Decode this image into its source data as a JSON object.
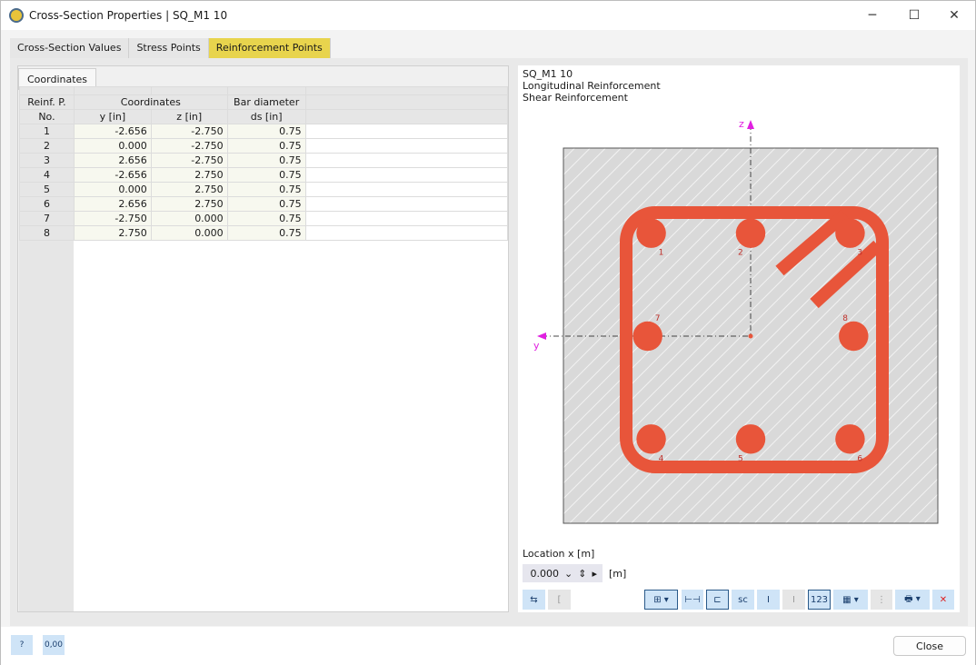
{
  "window": {
    "title": "Cross-Section Properties | SQ_M1 10"
  },
  "tabs": [
    {
      "label": "Cross-Section Values"
    },
    {
      "label": "Stress Points"
    },
    {
      "label": "Reinforcement Points",
      "active": true
    }
  ],
  "subtab": "Coordinates",
  "table": {
    "headers": {
      "no": "Reinf. P.",
      "no2": "No.",
      "coords": "Coordinates",
      "y": "y [in]",
      "z": "z [in]",
      "bar": "Bar diameter",
      "ds": "ds [in]"
    },
    "rows": [
      {
        "no": "1",
        "y": "-2.656",
        "z": "-2.750",
        "d": "0.75"
      },
      {
        "no": "2",
        "y": "0.000",
        "z": "-2.750",
        "d": "0.75"
      },
      {
        "no": "3",
        "y": "2.656",
        "z": "-2.750",
        "d": "0.75"
      },
      {
        "no": "4",
        "y": "-2.656",
        "z": "2.750",
        "d": "0.75"
      },
      {
        "no": "5",
        "y": "0.000",
        "z": "2.750",
        "d": "0.75"
      },
      {
        "no": "6",
        "y": "2.656",
        "z": "2.750",
        "d": "0.75"
      },
      {
        "no": "7",
        "y": "-2.750",
        "z": "0.000",
        "d": "0.75"
      },
      {
        "no": "8",
        "y": "2.750",
        "z": "0.000",
        "d": "0.75"
      }
    ]
  },
  "preview": {
    "name": "SQ_M1 10",
    "line2": "Longitudinal Reinforcement",
    "line3": "Shear Reinforcement",
    "axis_y": "y",
    "axis_z": "z",
    "rebar_color": "#e8553a",
    "axis_color": "#e020e0"
  },
  "location": {
    "label": "Location x [m]",
    "value": "0.000",
    "unit": "[m]"
  },
  "footer": {
    "close": "Close",
    "units_icon_text": "0,00"
  }
}
